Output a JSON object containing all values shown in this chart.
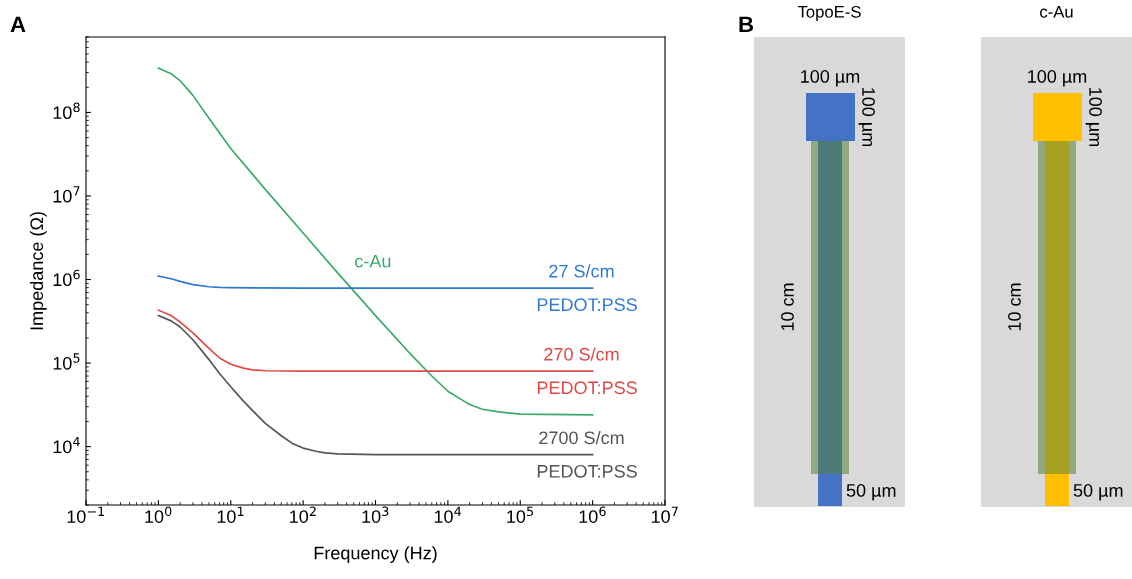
{
  "chart_data": [
    {
      "type": "line",
      "xlabel": "Frequency (Hz)",
      "ylabel": "Impedance (Ω)",
      "log": "xy",
      "xlim": [
        0.1,
        10000000
      ],
      "ylim": [
        2000,
        800000000
      ],
      "xticks": [
        {
          "value": 0.1,
          "label": "10$^{−1}$"
        },
        {
          "value": 1,
          "label": "10$^{0}$"
        },
        {
          "value": 10,
          "label": "10$^{1}$"
        },
        {
          "value": 100,
          "label": "10$^{2}$"
        },
        {
          "value": 1000,
          "label": "10$^{3}$"
        },
        {
          "value": 10000,
          "label": "10$^{4}$"
        },
        {
          "value": 100000,
          "label": "10$^{5}$"
        },
        {
          "value": 1000000,
          "label": "10$^{6}$"
        },
        {
          "value": 10000000,
          "label": "10$^{7}$"
        }
      ],
      "yticks": [
        {
          "value": 10000,
          "label": "10$^{4}$"
        },
        {
          "value": 100000,
          "label": "10$^{5}$"
        },
        {
          "value": 1000000,
          "label": "10$^{6}$"
        },
        {
          "value": 10000000,
          "label": "10$^{7}$"
        },
        {
          "value": 100000000,
          "label": "10$^{8}$"
        }
      ],
      "annotations": [
        "A"
      ],
      "series": [
        {
          "name": "c-Au",
          "color": "#3aaa6a",
          "x": [
            1,
            1.5,
            2,
            3,
            5,
            10,
            30,
            100,
            300,
            1000,
            3000,
            6000,
            10000,
            15000,
            20000,
            30000,
            50000,
            100000,
            1000000
          ],
          "values": [
            340000000,
            290000000,
            240000000,
            160000000,
            85000000,
            37000000,
            12000000,
            3600000,
            1200000,
            370000,
            130000,
            70000,
            46000,
            37000,
            32000,
            28000,
            26000,
            24500,
            24000
          ]
        },
        {
          "name": "27 S/cm\nPEDOT:PSS",
          "color": "#2f78d6",
          "x": [
            1,
            1.5,
            2,
            3,
            5,
            7,
            10,
            20,
            100,
            1000000
          ],
          "values": [
            1100000,
            1020000,
            950000,
            870000,
            820000,
            805000,
            800000,
            795000,
            790000,
            790000
          ]
        },
        {
          "name": "270 S/cm\nPEDOT:PSS",
          "color": "#e04848",
          "x": [
            1,
            1.5,
            2,
            3,
            5,
            7,
            10,
            15,
            20,
            30,
            100,
            1000000
          ],
          "values": [
            430000,
            370000,
            310000,
            230000,
            150000,
            115000,
            97000,
            87000,
            83000,
            81000,
            80000,
            80000
          ]
        },
        {
          "name": "2700 S/cm\nPEDOT:PSS",
          "color": "#555555",
          "x": [
            1,
            1.5,
            2,
            3,
            5,
            7,
            10,
            15,
            20,
            30,
            50,
            70,
            100,
            150,
            200,
            300,
            1000,
            1000000
          ],
          "values": [
            370000,
            320000,
            270000,
            190000,
            110000,
            75000,
            52000,
            35000,
            27000,
            19000,
            13500,
            11000,
            9600,
            8800,
            8400,
            8200,
            8000,
            8000
          ]
        }
      ]
    },
    {
      "type": "other",
      "title": "TopoE-S",
      "annotations": [
        "B",
        "100 µm",
        "100 µm",
        "10 cm",
        "50 µm"
      ],
      "colors": [
        "#d9d9d9",
        "#4472c4",
        "#8faa80",
        "#4d7a78"
      ]
    },
    {
      "type": "other",
      "title": "c-Au",
      "annotations": [
        "100 µm",
        "100 µm",
        "10 cm",
        "50 µm"
      ],
      "colors": [
        "#d9d9d9",
        "#ffc000",
        "#8faa80",
        "#a8a020"
      ]
    }
  ]
}
